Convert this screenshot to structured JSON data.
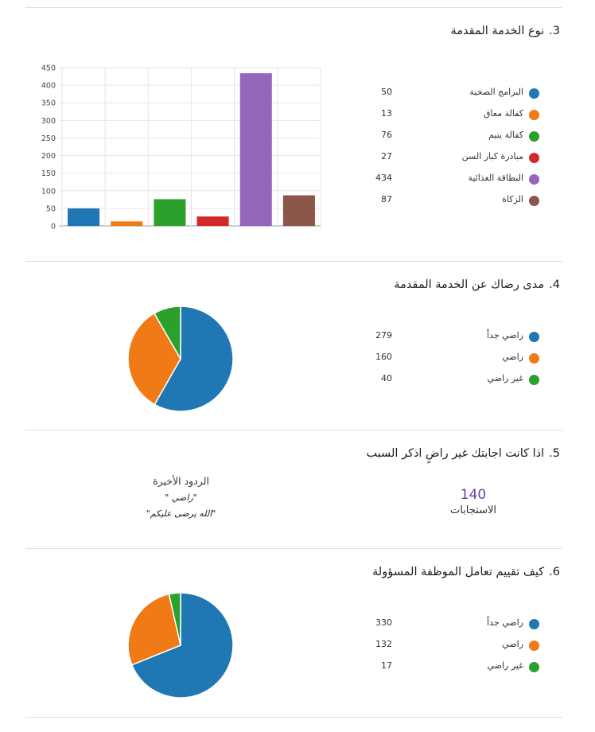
{
  "colors": {
    "blue": "#1f77b4",
    "orange": "#ef7a16",
    "green": "#2ca02c",
    "red": "#d62728",
    "purple": "#9467bd",
    "brown": "#8c564b",
    "count": "#6b3fa0"
  },
  "q3": {
    "number": "3.",
    "title": "نوع الخدمة المقدمة",
    "legend": [
      {
        "label": "البرامج الصحية",
        "value": "50",
        "color": "#1f77b4"
      },
      {
        "label": "كفالة معاق",
        "value": "13",
        "color": "#ef7a16"
      },
      {
        "label": "كفالة يتيم",
        "value": "76",
        "color": "#2ca02c"
      },
      {
        "label": "مبادرة كبار السن",
        "value": "27",
        "color": "#d62728"
      },
      {
        "label": "البطاقة الغذائية",
        "value": "434",
        "color": "#9467bd"
      },
      {
        "label": "الزكاة",
        "value": "87",
        "color": "#8c564b"
      }
    ]
  },
  "q4": {
    "number": "4.",
    "title": "مدى رضاك عن الخدمة المقدمة",
    "legend": [
      {
        "label": "راضي جداً",
        "value": "279",
        "color": "#1f77b4"
      },
      {
        "label": "راضي",
        "value": "160",
        "color": "#ef7a16"
      },
      {
        "label": "غير راضي",
        "value": "40",
        "color": "#2ca02c"
      }
    ]
  },
  "q5": {
    "number": "5.",
    "title": "اذا كانت اجابتك غير راضٍ اذكر السبب",
    "count": "140",
    "count_label": "الاستجابات",
    "recent_title": "الردود الأخيرة",
    "recent_responses": [
      "\"راضي \"",
      "\"الله يرضى عليكم\""
    ]
  },
  "q6": {
    "number": "6.",
    "title": "كيف تقييم تعامل الموظفة المسؤولة",
    "legend": [
      {
        "label": "راضي جداً",
        "value": "330",
        "color": "#1f77b4"
      },
      {
        "label": "راضي",
        "value": "132",
        "color": "#ef7a16"
      },
      {
        "label": "غير راضي",
        "value": "17",
        "color": "#2ca02c"
      }
    ]
  },
  "chart_data": [
    {
      "type": "bar",
      "categories": [
        "البرامج الصحية",
        "كفالة معاق",
        "كفالة يتيم",
        "مبادرة كبار السن",
        "البطاقة الغذائية",
        "الزكاة"
      ],
      "values": [
        50,
        13,
        76,
        27,
        434,
        87
      ],
      "colors": [
        "#1f77b4",
        "#ef7a16",
        "#2ca02c",
        "#d62728",
        "#9467bd",
        "#8c564b"
      ],
      "title": "نوع الخدمة المقدمة",
      "ylim": [
        0,
        450
      ],
      "yticks": [
        "0",
        "50",
        "100",
        "150",
        "200",
        "250",
        "300",
        "350",
        "400",
        "450"
      ],
      "grid": true
    },
    {
      "type": "pie",
      "categories": [
        "راضي جداً",
        "راضي",
        "غير راضي"
      ],
      "values": [
        279,
        160,
        40
      ],
      "colors": [
        "#1f77b4",
        "#ef7a16",
        "#2ca02c"
      ],
      "title": "مدى رضاك عن الخدمة المقدمة"
    },
    {
      "type": "pie",
      "categories": [
        "راضي جداً",
        "راضي",
        "غير راضي"
      ],
      "values": [
        330,
        132,
        17
      ],
      "colors": [
        "#1f77b4",
        "#ef7a16",
        "#2ca02c"
      ],
      "title": "كيف تقييم تعامل الموظفة المسؤولة"
    }
  ]
}
